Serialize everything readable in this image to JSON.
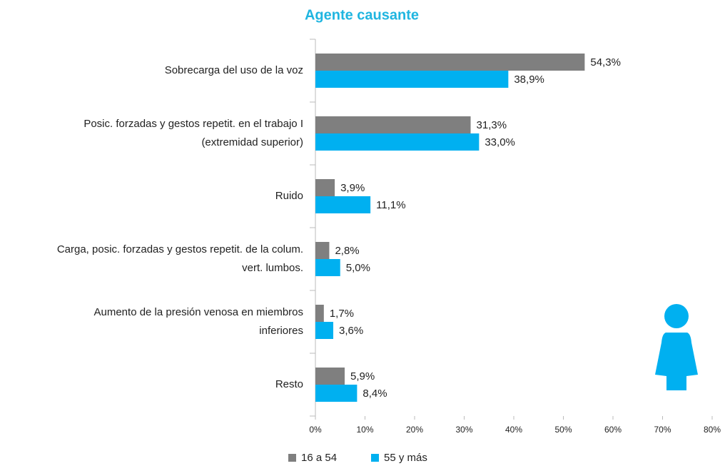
{
  "chart_data": {
    "type": "hbar",
    "title": "Agente causante",
    "categories": [
      [
        "Sobrecarga del uso de la voz"
      ],
      [
        "Posic. forzadas y gestos repetit. en el trabajo I",
        "(extremidad superior)"
      ],
      [
        "Ruido"
      ],
      [
        "Carga, posic. forzadas y gestos repetit. de la colum.",
        "vert. lumbos."
      ],
      [
        "Aumento de la presión venosa en miembros",
        "inferiores"
      ],
      [
        "Resto"
      ]
    ],
    "series": [
      {
        "name": "16 a 54",
        "color": "#7f7f7f",
        "values": [
          54.3,
          31.3,
          3.9,
          2.8,
          1.7,
          5.9
        ],
        "value_labels": [
          "54,3%",
          "31,3%",
          "3,9%",
          "2,8%",
          "1,7%",
          "5,9%"
        ]
      },
      {
        "name": "55 y más",
        "color": "#00b0f0",
        "values": [
          38.9,
          33.0,
          11.1,
          5.0,
          3.6,
          8.4
        ],
        "value_labels": [
          "38,9%",
          "33,0%",
          "11,1%",
          "5,0%",
          "3,6%",
          "8,4%"
        ]
      }
    ],
    "xlim": [
      0,
      80
    ],
    "xticks": [
      {
        "value": 0,
        "label": "0%"
      },
      {
        "value": 10,
        "label": "10%"
      },
      {
        "value": 20,
        "label": "20%"
      },
      {
        "value": 30,
        "label": "30%"
      },
      {
        "value": 40,
        "label": "40%"
      },
      {
        "value": 50,
        "label": "50%"
      },
      {
        "value": 60,
        "label": "60%"
      },
      {
        "value": 70,
        "label": "70%"
      },
      {
        "value": 80,
        "label": "80%"
      }
    ]
  }
}
